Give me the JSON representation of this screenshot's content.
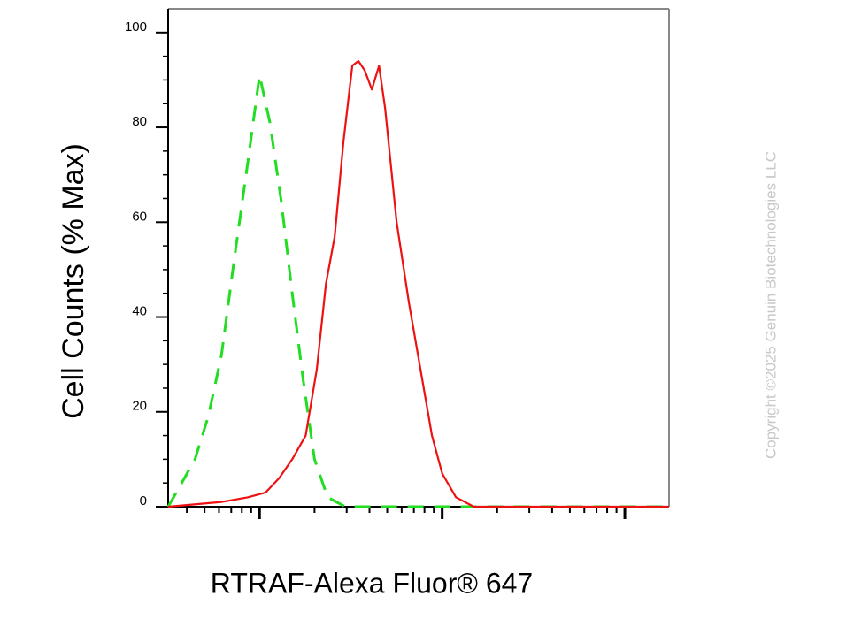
{
  "chart_data": {
    "type": "line",
    "x_label": "RTRAF-Alexa Fluor® 647",
    "y_label": "Cell Counts (% Max)",
    "watermark": "Copyright ©2025 Genuin Biotechnologies LLC",
    "xscale": "log",
    "xlim": [
      3.16,
      1746
    ],
    "xticks": [
      10,
      100,
      1000
    ],
    "ylim": [
      0,
      105
    ],
    "yticks": [
      0,
      20,
      40,
      60,
      80,
      100
    ],
    "series": [
      {
        "color": "#22dd22",
        "dashed": true,
        "x": [
          3.16,
          3.75,
          4.43,
          5.24,
          6.19,
          7.32,
          8.65,
          10,
          11.4,
          13.2,
          15.1,
          17.3,
          20.0,
          23.6,
          29.5,
          57.5,
          100,
          1746
        ],
        "values": [
          0,
          5,
          10,
          19,
          32,
          53,
          73,
          91,
          81,
          64,
          45,
          27,
          10,
          2,
          0,
          0,
          0,
          0
        ]
      },
      {
        "color": "#ee1111",
        "dashed": false,
        "x": [
          3.16,
          6.19,
          8.65,
          10.8,
          12.8,
          15.1,
          17.9,
          20.6,
          23.1,
          25.8,
          28.8,
          32.2,
          34.8,
          37.7,
          41.2,
          45.1,
          48.7,
          56.3,
          65.8,
          76.0,
          87.9,
          100,
          119,
          149,
          1746
        ],
        "values": [
          0,
          1,
          2,
          3,
          6,
          10,
          15,
          29,
          47,
          57,
          77,
          93,
          94,
          92,
          88,
          93,
          84,
          60,
          43,
          29,
          15,
          7,
          2,
          0,
          0
        ]
      }
    ]
  }
}
